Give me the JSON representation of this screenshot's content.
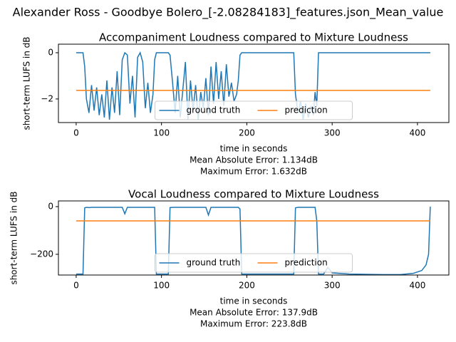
{
  "suptitle": "Alexander Ross - Goodbye Bolero_[-2.08284183]_features.json_Mean_value",
  "chart_data": [
    {
      "type": "line",
      "title": "Accompaniment Loudness compared to Mixture Loudness",
      "xlabel": "time in seconds",
      "ylabel": "short-term LUFS in dB",
      "annotations": [
        "Mean Absolute Error: 1.134dB",
        "Maximum Error: 1.632dB"
      ],
      "xlim": [
        -20.8,
        436.8
      ],
      "xticks": [
        0,
        100,
        200,
        300,
        400
      ],
      "ylim": [
        -3.02,
        0.37
      ],
      "yticks": [
        {
          "value": 0,
          "label": "0"
        },
        {
          "value": -2,
          "label": "−2"
        }
      ],
      "legend": "lower center",
      "series": [
        {
          "name": "ground truth",
          "color": "#1f77b4",
          "x": [
            0,
            5,
            8,
            10,
            12,
            15,
            18,
            21,
            24,
            27,
            30,
            33,
            36,
            39,
            42,
            45,
            48,
            51,
            54,
            57,
            60,
            63,
            66,
            69,
            72,
            75,
            78,
            81,
            84,
            87,
            90,
            92,
            94,
            96,
            100,
            105,
            108,
            110,
            113,
            116,
            119,
            122,
            125,
            128,
            131,
            134,
            137,
            140,
            143,
            146,
            149,
            152,
            155,
            158,
            161,
            164,
            167,
            170,
            173,
            176,
            179,
            182,
            185,
            188,
            190,
            192,
            194,
            200,
            210,
            220,
            230,
            240,
            250,
            255,
            257,
            260,
            263,
            266,
            269,
            272,
            275,
            278,
            280,
            282,
            284,
            290,
            295,
            300,
            320,
            340,
            360,
            380,
            395,
            405,
            410,
            413,
            415
          ],
          "values": [
            0,
            0,
            0,
            -0.6,
            -2.0,
            -2.6,
            -1.4,
            -2.5,
            -1.5,
            -2.7,
            -1.8,
            -2.8,
            -1.2,
            -2.9,
            -1.5,
            -2.6,
            -0.8,
            -2.7,
            -0.3,
            0,
            -0.1,
            -2.2,
            -1.0,
            -2.8,
            -0.2,
            0,
            -0.4,
            -2.4,
            -1.3,
            -2.6,
            -1.8,
            -0.3,
            0,
            0,
            0,
            0,
            0,
            -0.1,
            -1.3,
            -2.6,
            -1.0,
            -2.8,
            -1.6,
            -0.4,
            -2.9,
            -1.2,
            -2.5,
            -1.4,
            -2.9,
            -1.7,
            -2.4,
            -1.1,
            -2.7,
            -0.6,
            -2.2,
            -0.4,
            -2.0,
            -0.8,
            -2.3,
            -0.5,
            -1.9,
            -1.3,
            -2.1,
            -1.8,
            -1.2,
            -0.1,
            0,
            0,
            0,
            0,
            0,
            0,
            0,
            0,
            -1.8,
            -2.6,
            -2.1,
            -2.9,
            -2.2,
            -2.8,
            -2.3,
            -2.7,
            -1.7,
            -2.3,
            0,
            0,
            0,
            0,
            0,
            0,
            0,
            0,
            0,
            0,
            0,
            0,
            0
          ]
        },
        {
          "name": "prediction",
          "color": "#ff7f0e",
          "x": [
            0,
            415
          ],
          "values": [
            -1.63,
            -1.63
          ]
        }
      ]
    },
    {
      "type": "line",
      "title": "Vocal Loudness compared to Mixture Loudness",
      "xlabel": "time in seconds",
      "ylabel": "short-term LUFS in dB",
      "annotations": [
        "Mean Absolute Error: 137.9dB",
        "Maximum Error: 223.8dB"
      ],
      "xlim": [
        -20.8,
        436.8
      ],
      "xticks": [
        0,
        100,
        200,
        300,
        400
      ],
      "ylim": [
        -287,
        24
      ],
      "yticks": [
        {
          "value": 0,
          "label": "0"
        },
        {
          "value": -200,
          "label": "−200"
        }
      ],
      "legend": "lower center",
      "series": [
        {
          "name": "ground truth",
          "color": "#1f77b4",
          "x": [
            0,
            5,
            8,
            10,
            12,
            15,
            18,
            21,
            24,
            27,
            30,
            33,
            36,
            39,
            42,
            45,
            48,
            51,
            54,
            57,
            60,
            63,
            66,
            69,
            72,
            75,
            78,
            81,
            84,
            87,
            90,
            92,
            94,
            96,
            100,
            105,
            108,
            110,
            113,
            116,
            119,
            122,
            125,
            128,
            131,
            134,
            137,
            140,
            143,
            146,
            149,
            152,
            155,
            158,
            161,
            164,
            167,
            170,
            173,
            176,
            179,
            182,
            185,
            188,
            190,
            192,
            194,
            200,
            210,
            220,
            230,
            240,
            250,
            255,
            257,
            260,
            263,
            266,
            269,
            272,
            275,
            278,
            280,
            282,
            284,
            290,
            295,
            300,
            320,
            340,
            360,
            380,
            395,
            405,
            410,
            413,
            415
          ],
          "values": [
            -283,
            -283,
            -283,
            -5,
            -3,
            -4,
            -3,
            -3,
            -3,
            -3,
            -3,
            -3,
            -3,
            -3,
            -3,
            -3,
            -3,
            -3,
            -3,
            -30,
            -3,
            -3,
            -3,
            -3,
            -3,
            -3,
            -3,
            -3,
            -3,
            -3,
            -3,
            -3,
            -283,
            -283,
            -283,
            -283,
            -283,
            -4,
            -3,
            -3,
            -3,
            -3,
            -3,
            -3,
            -3,
            -3,
            -3,
            -3,
            -3,
            -3,
            -3,
            -3,
            -35,
            -3,
            -3,
            -3,
            -3,
            -3,
            -3,
            -3,
            -3,
            -3,
            -3,
            -3,
            -3,
            -10,
            -283,
            -283,
            -283,
            -283,
            -283,
            -283,
            -283,
            -283,
            -5,
            -3,
            -3,
            -3,
            -3,
            -3,
            -3,
            -3,
            -3,
            -60,
            -283,
            -283,
            -255,
            -278,
            -283,
            -284,
            -285,
            -285,
            -280,
            -268,
            -245,
            -200,
            0
          ]
        },
        {
          "name": "prediction",
          "color": "#ff7f0e",
          "x": [
            0,
            415
          ],
          "values": [
            -59.7,
            -59.7
          ]
        }
      ]
    }
  ]
}
